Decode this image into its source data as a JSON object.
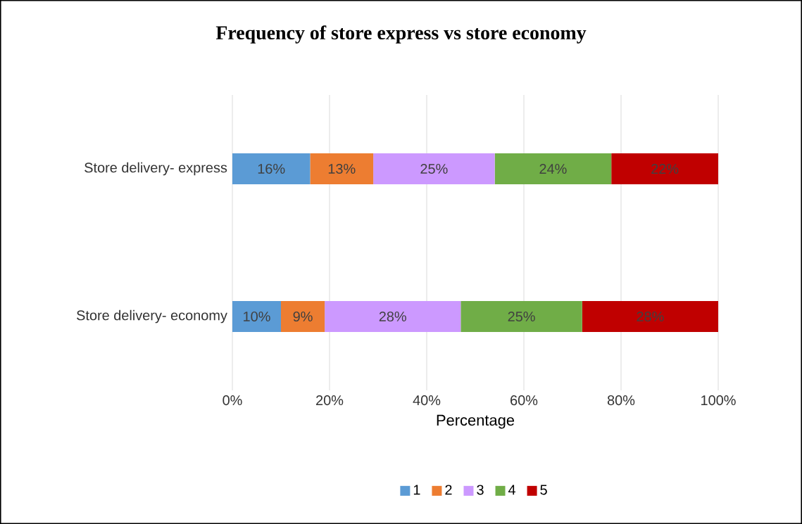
{
  "chart_data": {
    "type": "bar",
    "orientation": "horizontal",
    "stacked": true,
    "title": "Frequency of store express vs store economy",
    "xlabel": "Percentage",
    "categories": [
      "Store delivery- express",
      "Store delivery- economy"
    ],
    "series": [
      {
        "name": "1",
        "color": "#5b9bd5",
        "values": [
          16,
          10
        ],
        "value_labels": [
          "16%",
          "10%"
        ]
      },
      {
        "name": "2",
        "color": "#ed7d31",
        "values": [
          13,
          9
        ],
        "value_labels": [
          "13%",
          "9%"
        ]
      },
      {
        "name": "3",
        "color": "#cc99ff",
        "values": [
          25,
          28
        ],
        "value_labels": [
          "25%",
          "28%"
        ]
      },
      {
        "name": "4",
        "color": "#70ad47",
        "values": [
          24,
          25
        ],
        "value_labels": [
          "24%",
          "25%"
        ]
      },
      {
        "name": "5",
        "color": "#c00000",
        "values": [
          22,
          28
        ],
        "value_labels": [
          "22%",
          "28%"
        ]
      }
    ],
    "xlim": [
      0,
      100
    ],
    "xticks": [
      {
        "value": 0,
        "label": "0%"
      },
      {
        "value": 20,
        "label": "20%"
      },
      {
        "value": 40,
        "label": "40%"
      },
      {
        "value": 60,
        "label": "60%"
      },
      {
        "value": 80,
        "label": "80%"
      },
      {
        "value": 100,
        "label": "100%"
      }
    ],
    "grid": "x",
    "legend": "bottom"
  }
}
